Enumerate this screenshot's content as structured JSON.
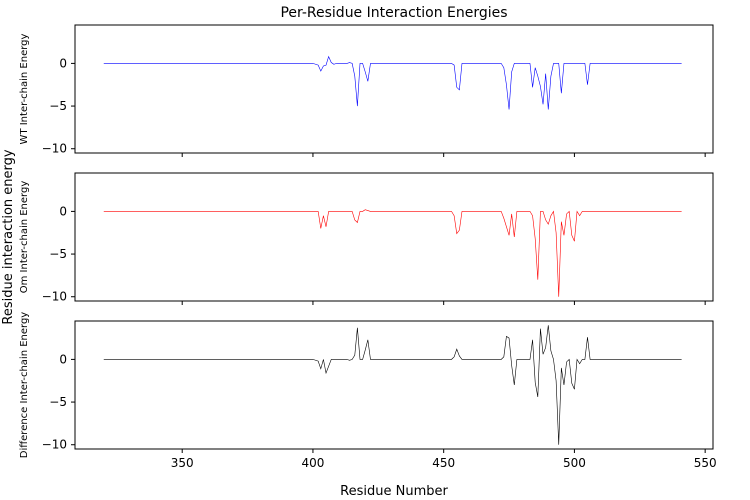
{
  "figure": {
    "title": "Per-Residue Interaction Energies",
    "xlabel": "Residue Number",
    "shared_ylabel": "Residue interaction energy"
  },
  "chart_data": [
    {
      "type": "line",
      "title": "Per-Residue Interaction Energies",
      "ylabel": "WT Inter-chain Energy",
      "color": "#0000ff",
      "xlim": [
        309,
        553
      ],
      "ylim": [
        -10.5,
        4.5
      ],
      "xticks": [
        350,
        400,
        450,
        500,
        550
      ],
      "yticks": [
        0,
        -5,
        -10
      ],
      "show_xticklabels": false,
      "x": [
        320,
        400,
        402,
        403,
        404,
        405,
        406,
        407,
        408,
        409,
        410,
        411,
        412,
        413,
        414,
        415,
        416,
        417,
        418,
        419,
        420,
        421,
        422,
        423,
        424,
        425,
        453,
        454,
        455,
        456,
        457,
        458,
        472,
        473,
        474,
        475,
        476,
        477,
        478,
        479,
        480,
        481,
        482,
        483,
        484,
        485,
        486,
        487,
        488,
        489,
        490,
        491,
        492,
        493,
        494,
        495,
        496,
        497,
        498,
        499,
        500,
        501,
        502,
        503,
        504,
        505,
        506,
        507,
        541
      ],
      "y": [
        0,
        0,
        -0.2,
        -0.9,
        -0.3,
        -0.2,
        0.8,
        0.1,
        -0.1,
        0,
        0,
        0,
        0,
        0,
        0.1,
        0,
        -1.5,
        -5.0,
        0,
        0,
        -1.0,
        -2.1,
        0,
        0,
        0,
        0,
        0,
        -0.2,
        -2.8,
        -3.1,
        0,
        0,
        0,
        -0.5,
        -2.5,
        -5.4,
        -1.0,
        0,
        0,
        0,
        0,
        0,
        0,
        0,
        -2.8,
        -0.5,
        -1.5,
        -2.7,
        -4.8,
        -1.2,
        -5.4,
        -1.5,
        0,
        0,
        0,
        -3.5,
        0,
        0,
        0,
        0,
        0,
        0,
        0,
        0,
        0,
        -2.5,
        0,
        0,
        0
      ]
    },
    {
      "type": "line",
      "ylabel": "Om Inter-chain Energy",
      "color": "#ff0000",
      "xlim": [
        309,
        553
      ],
      "ylim": [
        -10.5,
        4.5
      ],
      "xticks": [
        350,
        400,
        450,
        500,
        550
      ],
      "yticks": [
        0,
        -5,
        -10
      ],
      "show_xticklabels": false,
      "x": [
        320,
        400,
        402,
        403,
        404,
        405,
        406,
        407,
        408,
        409,
        410,
        411,
        412,
        413,
        414,
        415,
        416,
        417,
        418,
        419,
        420,
        421,
        422,
        423,
        424,
        425,
        453,
        454,
        455,
        456,
        457,
        458,
        472,
        473,
        474,
        475,
        476,
        477,
        478,
        479,
        480,
        481,
        482,
        483,
        484,
        485,
        486,
        487,
        488,
        489,
        490,
        491,
        492,
        493,
        494,
        495,
        496,
        497,
        498,
        499,
        500,
        501,
        502,
        503,
        504,
        505,
        506,
        507,
        541
      ],
      "y": [
        0,
        0,
        0,
        -2.0,
        -0.5,
        -1.8,
        0,
        0,
        0,
        0,
        0,
        0,
        0,
        0,
        0,
        0,
        -1.0,
        -1.3,
        0,
        0,
        0.2,
        0.1,
        0,
        0,
        0,
        0,
        0,
        -0.5,
        -2.6,
        -2.2,
        0,
        0,
        0,
        -0.8,
        -1.8,
        -2.8,
        -0.3,
        -3.0,
        0,
        0,
        0,
        0,
        0,
        0,
        -0.5,
        -3.2,
        -8.0,
        0,
        0,
        -1.0,
        -1.5,
        -0.5,
        0,
        -2.5,
        -10.0,
        -1.2,
        -2.8,
        -0.3,
        0,
        -2.8,
        -3.5,
        0,
        -0.5,
        0,
        0,
        0,
        0,
        0,
        0
      ]
    },
    {
      "type": "line",
      "ylabel": "Difference Inter-chain Energy",
      "color": "#000000",
      "xlim": [
        309,
        553
      ],
      "ylim": [
        -10.5,
        4.5
      ],
      "xticks": [
        350,
        400,
        450,
        500,
        550
      ],
      "xticklabels": [
        "350",
        "400",
        "450",
        "500",
        "550"
      ],
      "yticks": [
        0,
        -5,
        -10
      ],
      "show_xticklabels": true,
      "x": [
        320,
        400,
        402,
        403,
        404,
        405,
        406,
        407,
        408,
        409,
        410,
        411,
        412,
        413,
        414,
        415,
        416,
        417,
        418,
        419,
        420,
        421,
        422,
        423,
        424,
        425,
        453,
        454,
        455,
        456,
        457,
        458,
        472,
        473,
        474,
        475,
        476,
        477,
        478,
        479,
        480,
        481,
        482,
        483,
        484,
        485,
        486,
        487,
        488,
        489,
        490,
        491,
        492,
        493,
        494,
        495,
        496,
        497,
        498,
        499,
        500,
        501,
        502,
        503,
        504,
        505,
        506,
        507,
        541
      ],
      "y": [
        0,
        0,
        -0.2,
        -1.1,
        0,
        -1.6,
        -0.8,
        0,
        0,
        0,
        0,
        0,
        0,
        0,
        -0.1,
        0,
        0.5,
        3.7,
        0,
        0,
        1.1,
        2.3,
        0,
        0,
        0,
        0,
        0,
        0.3,
        1.2,
        0.4,
        0,
        0,
        0,
        0.3,
        2.7,
        2.5,
        -0.7,
        -3.0,
        0,
        0,
        0,
        0,
        0,
        0,
        2.3,
        -2.7,
        -4.4,
        3.6,
        0.6,
        1.4,
        4.0,
        1.0,
        0,
        -2.5,
        -10.0,
        -1.0,
        -3.0,
        -0.3,
        0,
        -2.8,
        -3.5,
        0,
        -0.5,
        0,
        0,
        2.6,
        0,
        0,
        0
      ]
    }
  ]
}
